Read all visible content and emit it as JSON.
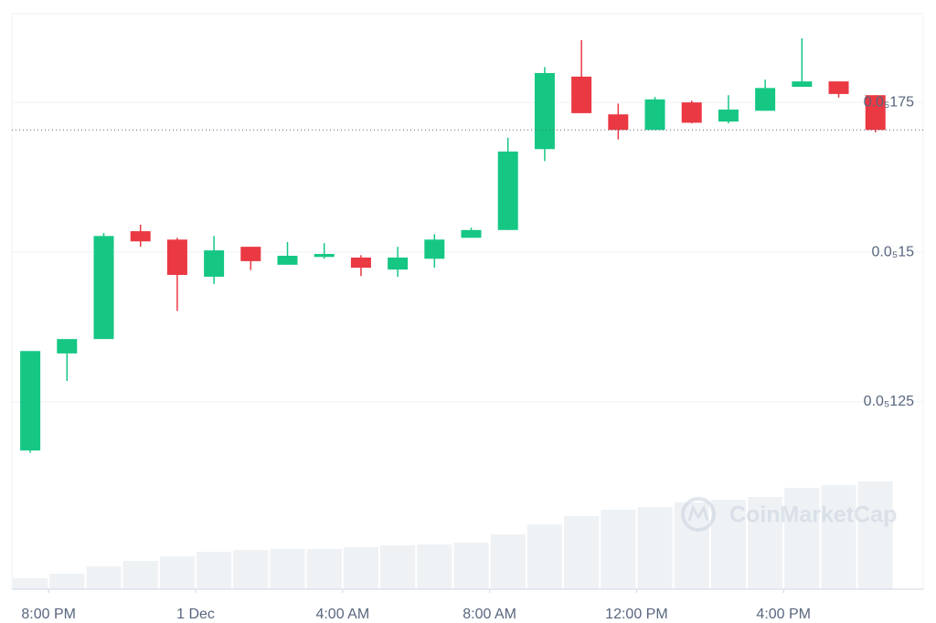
{
  "chart_data": {
    "type": "candlestick",
    "watermark": "CoinMarketCap",
    "x": [
      19.5,
      20.5,
      21.5,
      22.5,
      23.5,
      24.5,
      25.5,
      26.5,
      27.5,
      28.5,
      29.5,
      30.5,
      31.5,
      32.5,
      33.5,
      34.5,
      35.5,
      36.5,
      37.5,
      38.5,
      39.5,
      40.5,
      41.5,
      42.5
    ],
    "open": [
      1.169e-06,
      1.331e-06,
      1.355e-06,
      1.535e-06,
      1.521e-06,
      1.459e-06,
      1.509e-06,
      1.479e-06,
      1.492e-06,
      1.491e-06,
      1.471e-06,
      1.489e-06,
      1.524e-06,
      1.537e-06,
      1.672e-06,
      1.793e-06,
      1.73e-06,
      1.704e-06,
      1.75e-06,
      1.718e-06,
      1.736e-06,
      1.776e-06,
      1.785e-06,
      1.762e-06
    ],
    "high": [
      1.335e-06,
      1.355e-06,
      1.532e-06,
      1.546e-06,
      1.524e-06,
      1.527e-06,
      1.509e-06,
      1.517e-06,
      1.515e-06,
      1.495e-06,
      1.509e-06,
      1.53e-06,
      1.541e-06,
      1.691e-06,
      1.809e-06,
      1.854e-06,
      1.748e-06,
      1.759e-06,
      1.753e-06,
      1.762e-06,
      1.788e-06,
      1.857e-06,
      1.785e-06,
      1.762e-06
    ],
    "low": [
      1.165e-06,
      1.285e-06,
      1.355e-06,
      1.509e-06,
      1.402e-06,
      1.447e-06,
      1.47e-06,
      1.479e-06,
      1.489e-06,
      1.46e-06,
      1.459e-06,
      1.474e-06,
      1.524e-06,
      1.537e-06,
      1.652e-06,
      1.732e-06,
      1.688e-06,
      1.704e-06,
      1.715e-06,
      1.715e-06,
      1.736e-06,
      1.776e-06,
      1.758e-06,
      1.7e-06
    ],
    "close": [
      1.335e-06,
      1.355e-06,
      1.527e-06,
      1.518e-06,
      1.462e-06,
      1.503e-06,
      1.485e-06,
      1.494e-06,
      1.497e-06,
      1.474e-06,
      1.491e-06,
      1.521e-06,
      1.537e-06,
      1.668e-06,
      1.799e-06,
      1.732e-06,
      1.704e-06,
      1.755e-06,
      1.716e-06,
      1.738e-06,
      1.774e-06,
      1.785e-06,
      1.764e-06,
      1.704e-06
    ],
    "up_color": "#16c784",
    "down_color": "#ea3943",
    "volume": {
      "axis": "y2",
      "color": "#eff2f5",
      "values": [
        12,
        17,
        25,
        31,
        36,
        41,
        43,
        44,
        44,
        46,
        48,
        49,
        51,
        60,
        71,
        80,
        87,
        90,
        95,
        98,
        101,
        111,
        114,
        118
      ]
    },
    "xlim": [
      19,
      43.8
    ],
    "xticks": [
      {
        "value": 20,
        "label": "8:00 PM"
      },
      {
        "value": 24,
        "label": "1 Dec"
      },
      {
        "value": 28,
        "label": "4:00 AM"
      },
      {
        "value": 32,
        "label": "8:00 AM"
      },
      {
        "value": 36,
        "label": "12:00 PM"
      },
      {
        "value": 40,
        "label": "4:00 PM"
      }
    ],
    "ylim": [
      9.375e-07,
      1.898e-06
    ],
    "yticks": [
      {
        "value": 1.75e-06,
        "label": "0.0₅175"
      },
      {
        "value": 1.5e-06,
        "label": "0.0₅15"
      },
      {
        "value": 1.25e-06,
        "label": "0.0₅125"
      }
    ],
    "y2lim": [
      0,
      630
    ],
    "grid": true
  }
}
